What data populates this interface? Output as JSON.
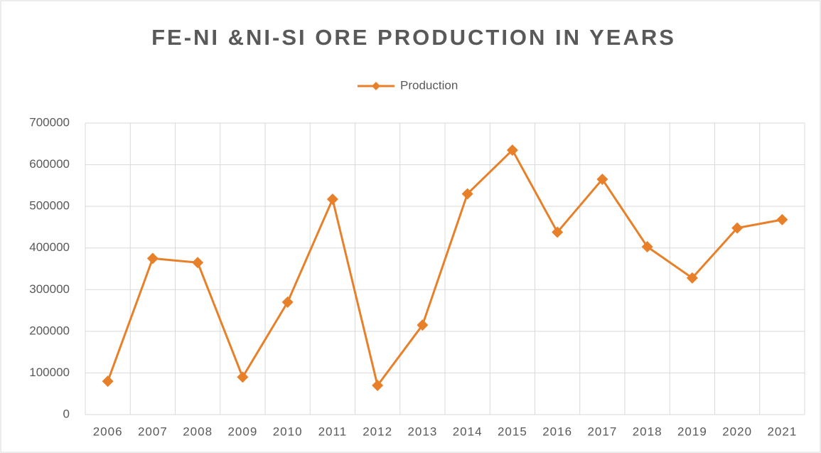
{
  "chart_data": {
    "type": "line",
    "title": "FE-NI &NI-SI ORE PRODUCTION IN YEARS",
    "categories": [
      "2006",
      "2007",
      "2008",
      "2009",
      "2010",
      "2011",
      "2012",
      "2013",
      "2014",
      "2015",
      "2016",
      "2017",
      "2018",
      "2019",
      "2020",
      "2021"
    ],
    "series": [
      {
        "name": "Production",
        "color": "#e8802a",
        "values": [
          80000,
          375000,
          365000,
          90000,
          270000,
          517000,
          70000,
          215000,
          530000,
          635000,
          438000,
          565000,
          403000,
          328000,
          448000,
          468000
        ]
      }
    ],
    "ylim": [
      0,
      700000
    ],
    "yticks": [
      0,
      100000,
      200000,
      300000,
      400000,
      500000,
      600000,
      700000
    ],
    "grid": true,
    "legend": "top"
  }
}
